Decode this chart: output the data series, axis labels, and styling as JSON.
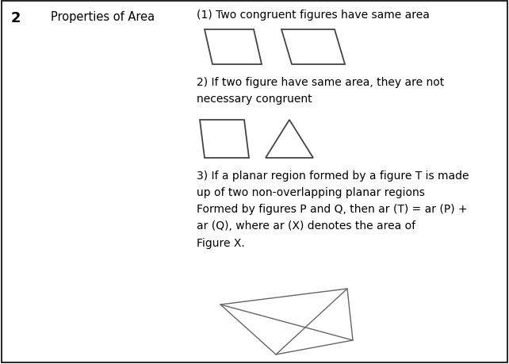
{
  "bg_color": "#ffffff",
  "border_color": "#000000",
  "text_color": "#000000",
  "number": "2",
  "category": "Properties of Area",
  "prop1_text": "(1) Two congruent figures have same area",
  "prop2_text": "2) If two figure have same area, they are not\nnecessary congruent",
  "prop3_text": "3) If a planar region formed by a figure T is made\nup of two non-overlapping planar regions",
  "prop3b_text": "Formed by figures P and Q, then ar (T) = ar (P) +\nar (Q), where ar (X) denotes the area of",
  "prop3c_text": "Figure X.",
  "font_size_number": 13,
  "font_size_category": 10.5,
  "font_size_text": 10
}
